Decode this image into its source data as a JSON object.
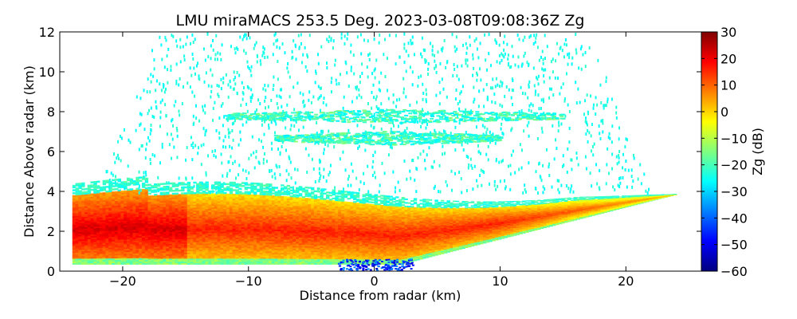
{
  "chart_data": {
    "type": "heatmap",
    "title": "LMU miraMACS 253.5 Deg. 2023-03-08T09:08:36Z  Zg",
    "xlabel": "Distance from radar (km)",
    "ylabel": "Distance Above radar  (km)",
    "xlim": [
      -25,
      26
    ],
    "ylim": [
      0,
      12
    ],
    "xticks": [
      -20,
      -10,
      0,
      10,
      20
    ],
    "yticks": [
      0,
      2,
      4,
      6,
      8,
      10,
      12
    ],
    "grid": false,
    "colorbar": {
      "label": "Zg (dB)",
      "range": [
        -60,
        30
      ],
      "ticks": [
        30,
        20,
        10,
        0,
        -10,
        -20,
        -30,
        -40,
        -50,
        -60
      ],
      "colormap": "jet",
      "colors": [
        "#00007f",
        "#0000ff",
        "#007fff",
        "#00ffff",
        "#7fff7f",
        "#ffff00",
        "#ff7f00",
        "#ff0000",
        "#7f0000"
      ]
    },
    "features": [
      {
        "region": "dense precipitation layer",
        "x": [
          -24,
          24
        ],
        "y": [
          0.3,
          4.5
        ],
        "zg_dB": [
          -20,
          25
        ]
      },
      {
        "region": "strongest echo near left edge",
        "x": [
          -24,
          -15
        ],
        "y": [
          1.5,
          3
        ],
        "zg_dB": [
          18,
          25
        ]
      },
      {
        "region": "weak echo near ground at radar",
        "x": [
          -3,
          3
        ],
        "y": [
          0,
          0.6
        ],
        "zg_dB": [
          -55,
          -35
        ]
      },
      {
        "region": "thin cloud layer",
        "x": [
          -12,
          15
        ],
        "y": [
          7.4,
          8.2
        ],
        "zg_dB": [
          -30,
          -15
        ]
      },
      {
        "region": "thin cloud layer",
        "x": [
          -8,
          10
        ],
        "y": [
          6.3,
          7.1
        ],
        "zg_dB": [
          -30,
          -15
        ]
      },
      {
        "region": "sparse noise echoes",
        "x": [
          -22,
          23
        ],
        "y": [
          4,
          12
        ],
        "zg_dB": [
          -28,
          -22
        ]
      }
    ]
  }
}
